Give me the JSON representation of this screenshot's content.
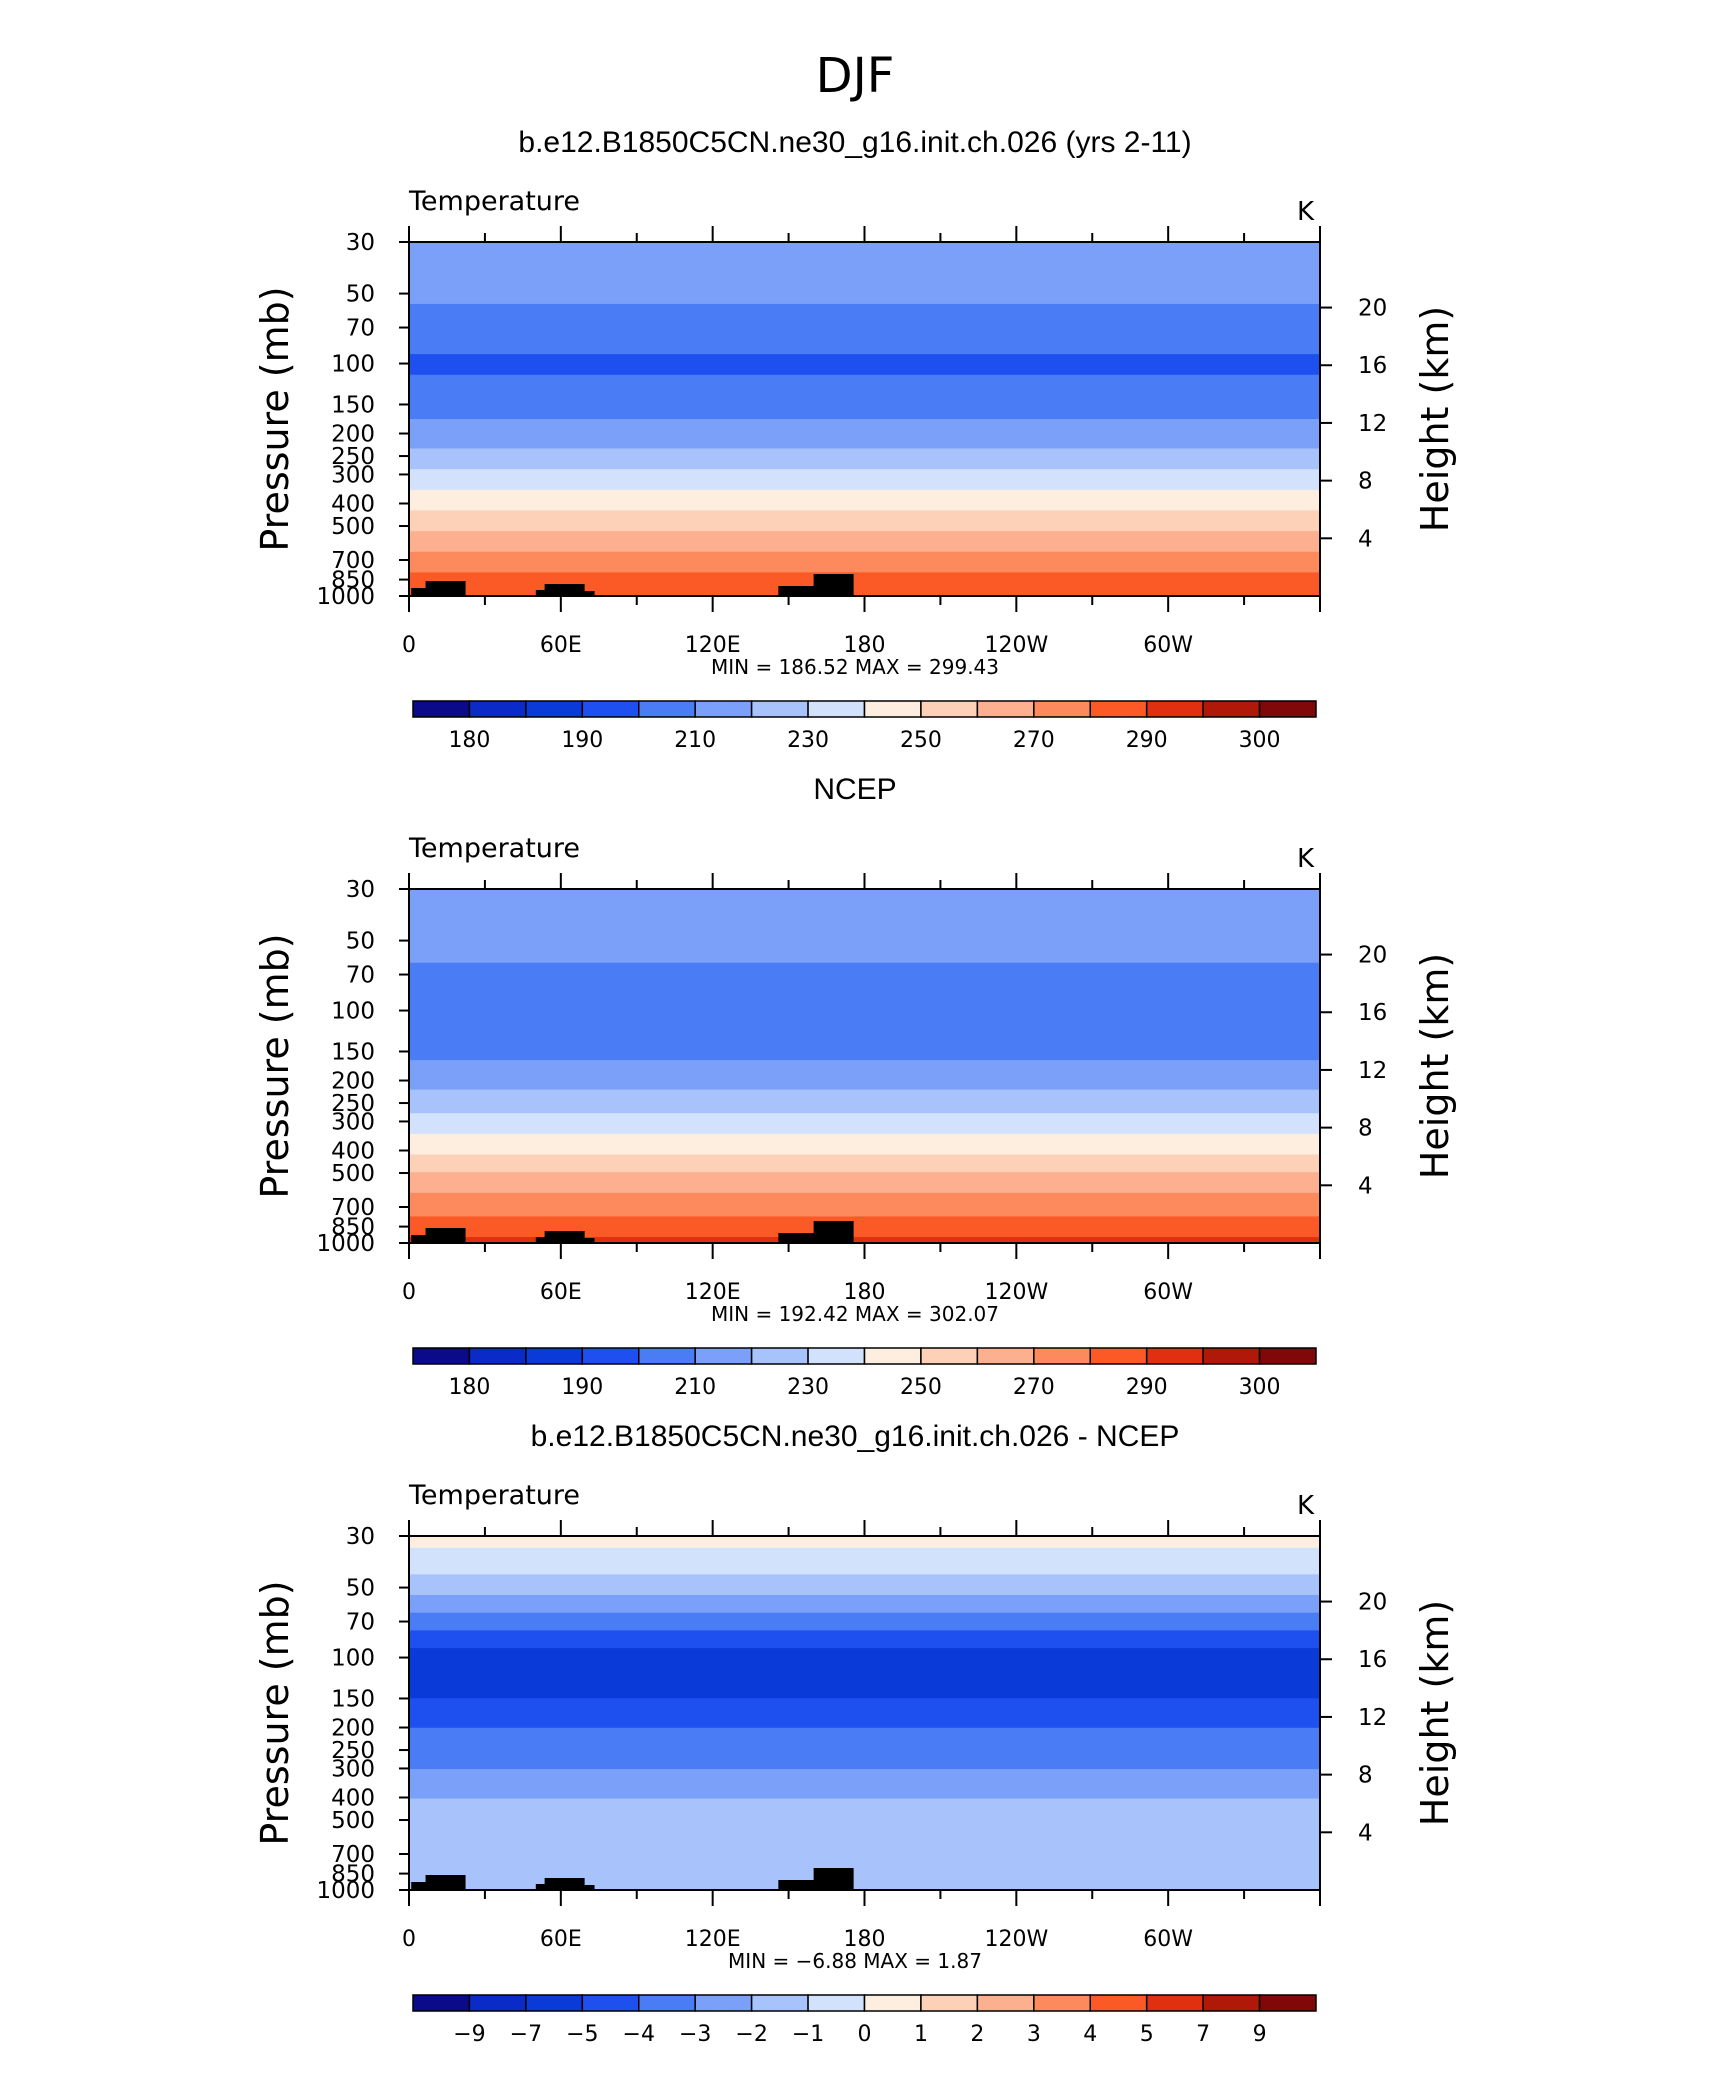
{
  "figure": {
    "title": "DJF"
  },
  "colors": {
    "temperature_scale": [
      "#0a0a8a",
      "#0b2bc8",
      "#0a3ad8",
      "#1e50f0",
      "#4a7cf5",
      "#7aa0fa",
      "#a8c2fb",
      "#d2e2fc",
      "#fdeee0",
      "#fdd0b8",
      "#fcb090",
      "#fc8a5c",
      "#fb5a26",
      "#e03010",
      "#b01808",
      "#800808"
    ],
    "difference_scale": [
      "#0a0a8a",
      "#0b2bc8",
      "#0a3ad8",
      "#1e50f0",
      "#4a7cf5",
      "#7aa0fa",
      "#a8c2fb",
      "#d2e2fc",
      "#fdeee0",
      "#fdd0b8",
      "#fcb090",
      "#fc8a5c",
      "#fb5a26",
      "#e03010",
      "#b01808",
      "#800808"
    ],
    "topography": "#000000"
  },
  "chart_data": [
    {
      "type": "heatmap",
      "title": "b.e12.B1850C5CN.ne30_g16.init.ch.026 (yrs 2-11)",
      "variable": "Temperature",
      "units": "K",
      "xlabel": "",
      "ylabel": "Pressure (mb)",
      "ylabel_right": "Height (km)",
      "x_ticks": [
        "0",
        "60E",
        "120E",
        "180",
        "120W",
        "60W"
      ],
      "y_ticks": [
        "30",
        "50",
        "70",
        "100",
        "150",
        "200",
        "250",
        "300",
        "400",
        "500",
        "700",
        "850",
        "1000"
      ],
      "y_right_ticks": [
        "20",
        "16",
        "12",
        "8",
        "4"
      ],
      "stats": "MIN =  186.52   MAX =  299.43",
      "colorbar_labels": [
        "180",
        "190",
        "210",
        "230",
        "250",
        "270",
        "290",
        "300"
      ],
      "profile_K": {
        "pressure_mb": [
          30,
          50,
          70,
          100,
          150,
          200,
          250,
          300,
          400,
          500,
          700,
          850,
          1000
        ],
        "temperature": [
          218,
          212,
          206,
          198,
          206,
          214,
          224,
          232,
          246,
          258,
          274,
          283,
          290
        ]
      }
    },
    {
      "type": "heatmap",
      "title": "NCEP",
      "variable": "Temperature",
      "units": "K",
      "xlabel": "",
      "ylabel": "Pressure (mb)",
      "ylabel_right": "Height (km)",
      "x_ticks": [
        "0",
        "60E",
        "120E",
        "180",
        "120W",
        "60W"
      ],
      "y_ticks": [
        "30",
        "50",
        "70",
        "100",
        "150",
        "200",
        "250",
        "300",
        "400",
        "500",
        "700",
        "850",
        "1000"
      ],
      "y_right_ticks": [
        "20",
        "16",
        "12",
        "8",
        "4"
      ],
      "stats": "MIN =  192.42   MAX =  302.07",
      "colorbar_labels": [
        "180",
        "190",
        "210",
        "230",
        "250",
        "270",
        "290",
        "300"
      ],
      "profile_K": {
        "pressure_mb": [
          30,
          50,
          70,
          100,
          150,
          200,
          250,
          300,
          400,
          500,
          700,
          850,
          1000
        ],
        "temperature": [
          220,
          214,
          208,
          202,
          208,
          216,
          226,
          234,
          248,
          260,
          276,
          285,
          294
        ]
      }
    },
    {
      "type": "heatmap",
      "title": "b.e12.B1850C5CN.ne30_g16.init.ch.026 - NCEP",
      "variable": "Temperature",
      "units": "K",
      "xlabel": "",
      "ylabel": "Pressure (mb)",
      "ylabel_right": "Height (km)",
      "x_ticks": [
        "0",
        "60E",
        "120E",
        "180",
        "120W",
        "60W"
      ],
      "y_ticks": [
        "30",
        "50",
        "70",
        "100",
        "150",
        "200",
        "250",
        "300",
        "400",
        "500",
        "700",
        "850",
        "1000"
      ],
      "y_right_ticks": [
        "20",
        "16",
        "12",
        "8",
        "4"
      ],
      "stats": "MIN =    −6.88   MAX =      1.87",
      "colorbar_labels": [
        "−9",
        "−7",
        "−5",
        "−4",
        "−3",
        "−2",
        "−1",
        "0",
        "1",
        "2",
        "3",
        "4",
        "5",
        "7",
        "9"
      ],
      "profile_K": {
        "pressure_mb": [
          30,
          50,
          70,
          100,
          150,
          200,
          250,
          300,
          400,
          500,
          700,
          850,
          1000
        ],
        "difference": [
          0.5,
          -1.5,
          -3.5,
          -5.5,
          -5.0,
          -4.0,
          -3.5,
          -3.0,
          -2.0,
          -2.0,
          -1.5,
          -1.0,
          -2.0
        ]
      }
    }
  ]
}
